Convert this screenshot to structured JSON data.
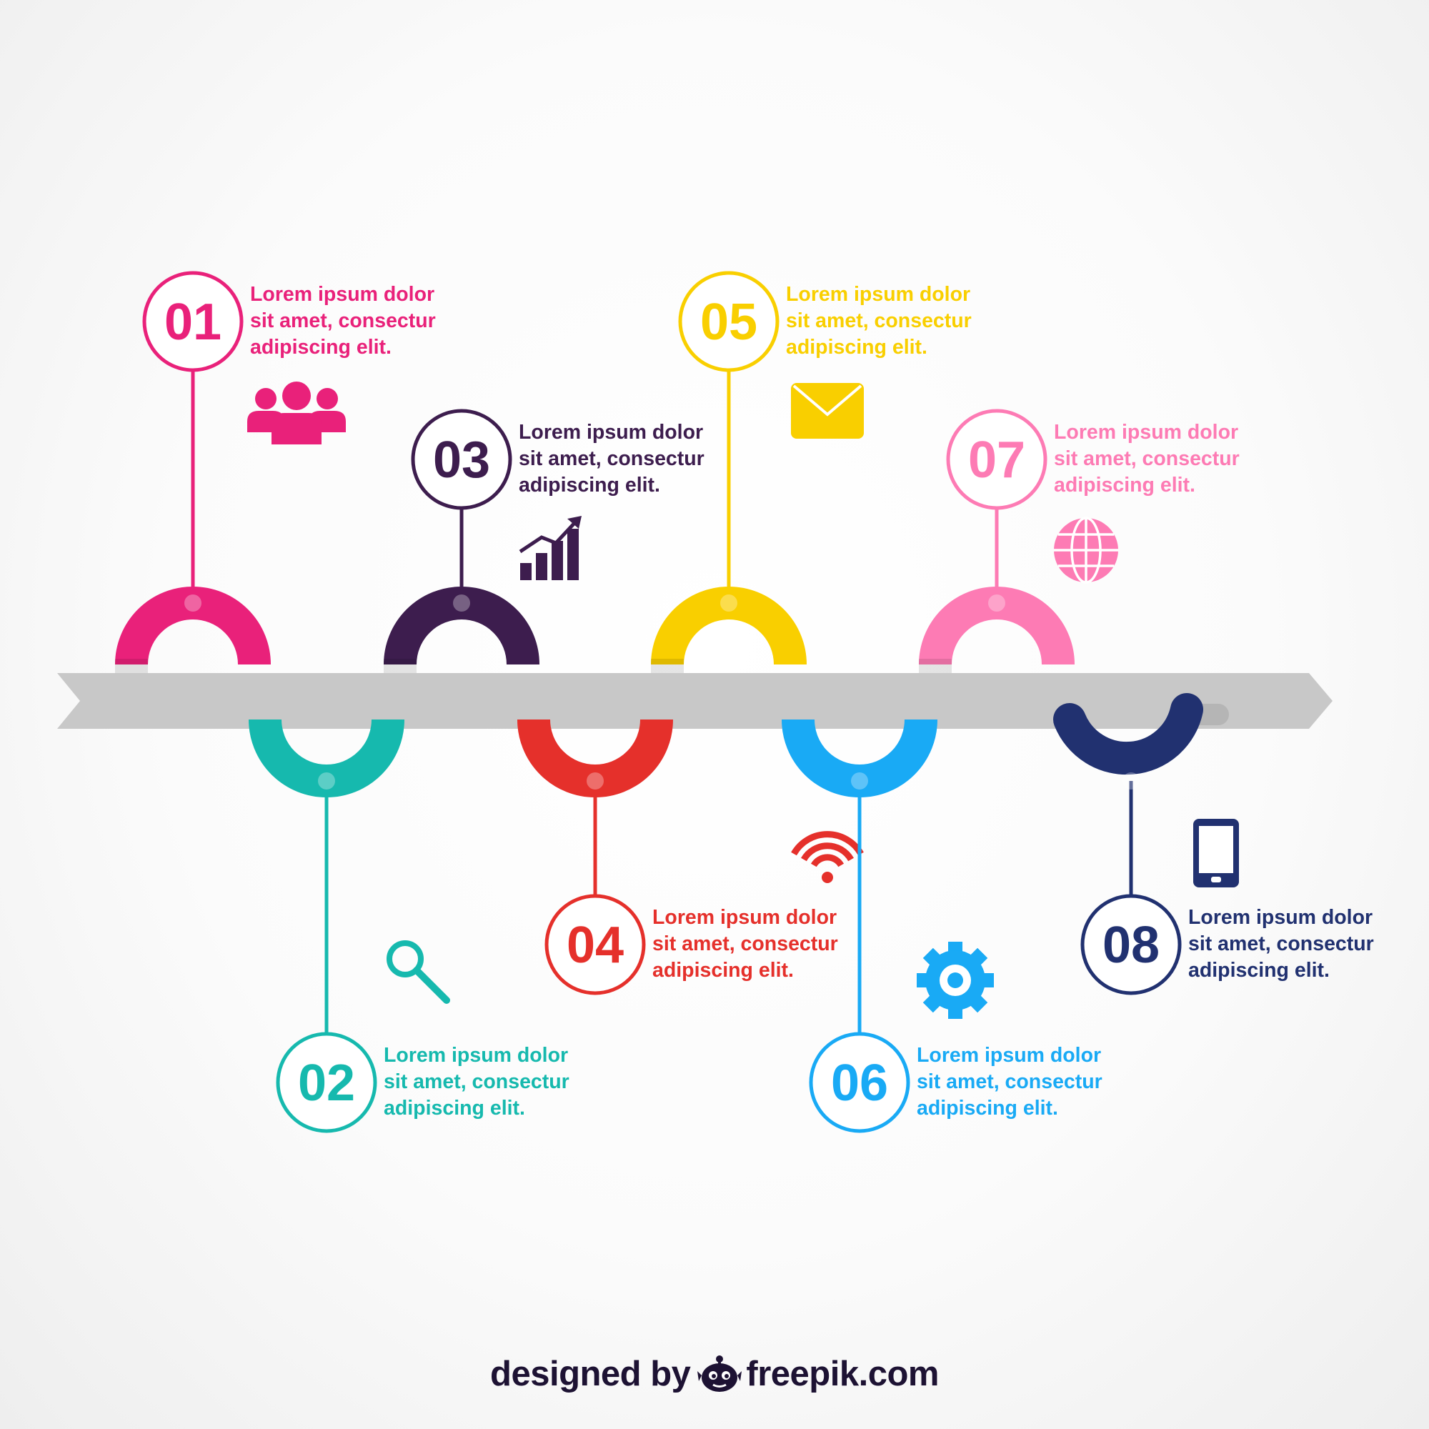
{
  "colors": {
    "arrow": "#c8c8c8",
    "arrow_shadow": "#b5b5b5",
    "dot_fill": "#ffffff"
  },
  "steps": [
    {
      "number": "01",
      "color": "#e9217a",
      "lines": [
        "Lorem ipsum dolor",
        "sit amet, consectur",
        "adipiscing elit."
      ],
      "icon": "people-icon"
    },
    {
      "number": "02",
      "color": "#16b9ae",
      "lines": [
        "Lorem ipsum dolor",
        "sit amet, consectur",
        "adipiscing elit."
      ],
      "icon": "magnifier-icon"
    },
    {
      "number": "03",
      "color": "#3d1d4e",
      "lines": [
        "Lorem ipsum dolor",
        "sit amet, consectur",
        "adipiscing elit."
      ],
      "icon": "growth-chart-icon"
    },
    {
      "number": "04",
      "color": "#e5302b",
      "lines": [
        "Lorem ipsum dolor",
        "sit amet, consectur",
        "adipiscing elit."
      ],
      "icon": "wifi-icon"
    },
    {
      "number": "05",
      "color": "#f9cf00",
      "lines": [
        "Lorem ipsum dolor",
        "sit amet, consectur",
        "adipiscing elit."
      ],
      "icon": "envelope-icon"
    },
    {
      "number": "06",
      "color": "#19aaf5",
      "lines": [
        "Lorem ipsum dolor",
        "sit amet, consectur",
        "adipiscing elit."
      ],
      "icon": "gear-icon"
    },
    {
      "number": "07",
      "color": "#fd7bb4",
      "lines": [
        "Lorem ipsum dolor",
        "sit amet, consectur",
        "adipiscing elit."
      ],
      "icon": "globe-icon"
    },
    {
      "number": "08",
      "color": "#213170",
      "lines": [
        "Lorem ipsum dolor",
        "sit amet, consectur",
        "adipiscing elit."
      ],
      "icon": "tablet-icon"
    }
  ],
  "credit": {
    "prefix": "designed by",
    "brand": "freepik.com"
  }
}
